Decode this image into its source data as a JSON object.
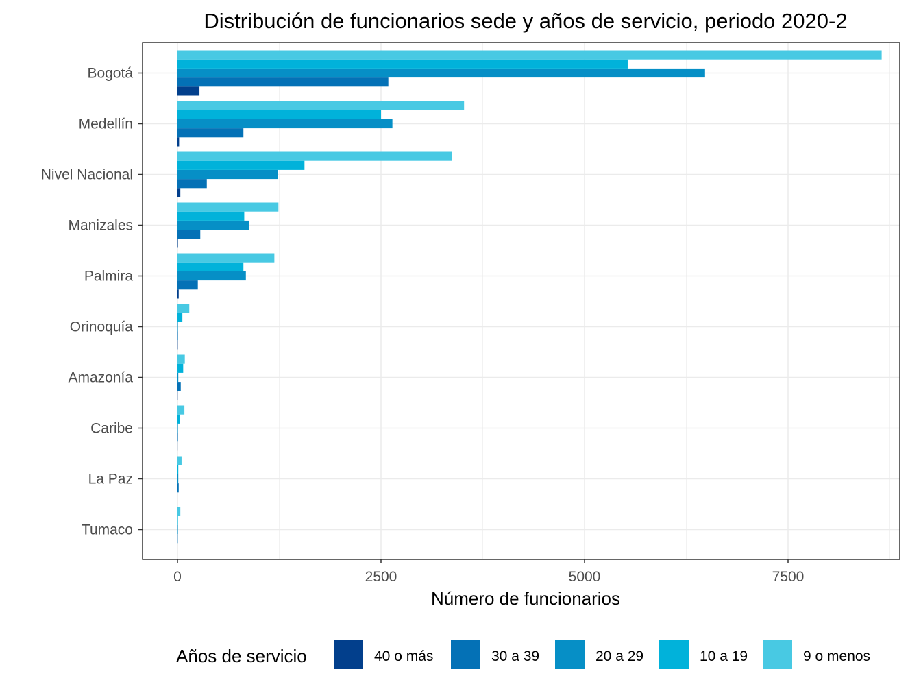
{
  "chart_data": {
    "type": "bar",
    "orientation": "horizontal",
    "title": "Distribución de funcionarios sede y años de servicio, periodo 2020-2",
    "xlabel": "Número de funcionarios",
    "ylabel": "",
    "xlim": [
      -1700,
      9050
    ],
    "xticks": [
      0,
      2500,
      5000,
      7500
    ],
    "xtick_labels": [
      "0",
      "2500",
      "5000",
      "7500"
    ],
    "grid": true,
    "legend": {
      "title": "Años de servicio",
      "position": "bottom"
    },
    "categories": [
      "Bogotá",
      "Medellín",
      "Nivel Nacional",
      "Manizales",
      "Palmira",
      "Orinoquía",
      "Amazonía",
      "Caribe",
      "La Paz",
      "Tumaco"
    ],
    "series": [
      {
        "name": "40 o más",
        "color": "#023f8c",
        "values": [
          270,
          20,
          35,
          5,
          15,
          3,
          2,
          1,
          0,
          0
        ]
      },
      {
        "name": "30 a 39",
        "color": "#0471b6",
        "values": [
          2590,
          810,
          360,
          280,
          250,
          5,
          40,
          5,
          15,
          3
        ]
      },
      {
        "name": "20 a 29",
        "color": "#068fc6",
        "values": [
          6480,
          2640,
          1230,
          880,
          840,
          5,
          10,
          5,
          10,
          5
        ]
      },
      {
        "name": "10 a 19",
        "color": "#01b2da",
        "values": [
          5530,
          2500,
          1560,
          820,
          810,
          60,
          70,
          30,
          10,
          5
        ]
      },
      {
        "name": "9 o menos",
        "color": "#48c9e3",
        "values": [
          8650,
          3520,
          3370,
          1240,
          1190,
          145,
          90,
          85,
          50,
          35
        ]
      }
    ]
  }
}
